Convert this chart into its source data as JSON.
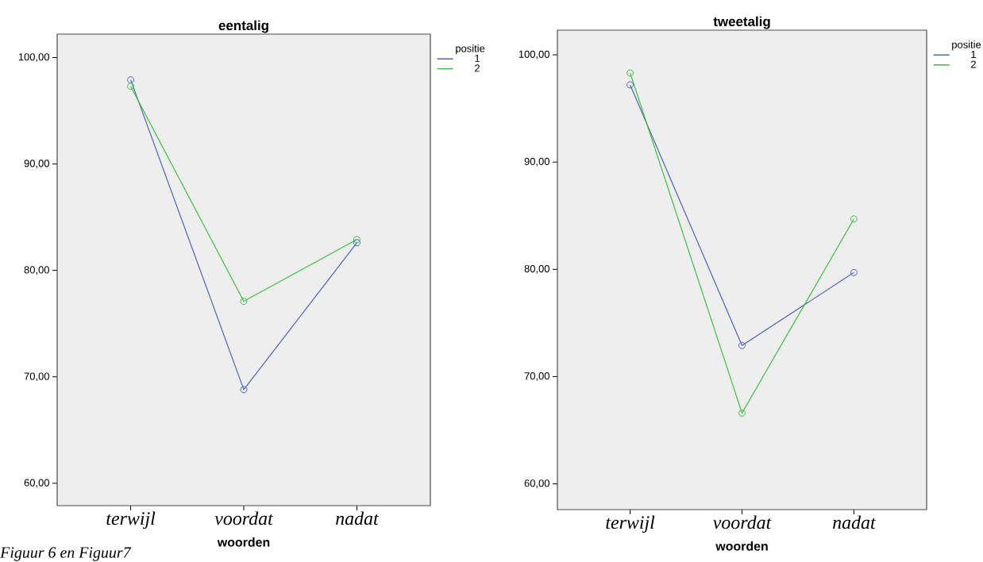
{
  "chart_data": [
    {
      "type": "line",
      "title": "eentalig",
      "xlabel": "woorden",
      "legend_title": "positie",
      "categories": [
        "terwijl",
        "voordat",
        "nadat"
      ],
      "series": [
        {
          "name": "1",
          "color": "#4f63b8",
          "values": [
            97.9,
            68.8,
            82.6
          ]
        },
        {
          "name": "2",
          "color": "#3fbf3f",
          "values": [
            97.3,
            77.1,
            82.9
          ]
        }
      ],
      "ylim": [
        57.9,
        102.2
      ],
      "yticks": [
        {
          "value": 60,
          "label": "60,00"
        },
        {
          "value": 70,
          "label": "70,00"
        },
        {
          "value": 80,
          "label": "80,00"
        },
        {
          "value": 90,
          "label": "90,00"
        },
        {
          "value": 100,
          "label": "100,00"
        }
      ],
      "marker": "circle",
      "line_style": "solid",
      "legend": "right",
      "grid": false,
      "annotations": [
        "Figuur 6 en Figuur7"
      ]
    },
    {
      "type": "line",
      "title": "tweetalig",
      "xlabel": "woorden",
      "legend_title": "positie",
      "categories": [
        "terwijl",
        "voordat",
        "nadat"
      ],
      "series": [
        {
          "name": "1",
          "color": "#4f63b8",
          "values": [
            97.2,
            72.9,
            79.7
          ]
        },
        {
          "name": "2",
          "color": "#3fbf3f",
          "values": [
            98.3,
            66.6,
            84.7
          ]
        }
      ],
      "ylim": [
        57.6,
        102.3
      ],
      "yticks": [
        {
          "value": 60,
          "label": "60,00"
        },
        {
          "value": 70,
          "label": "70,00"
        },
        {
          "value": 80,
          "label": "80,00"
        },
        {
          "value": 90,
          "label": "90,00"
        },
        {
          "value": 100,
          "label": "100,00"
        }
      ],
      "marker": "circle",
      "line_style": "solid",
      "legend": "right",
      "grid": false
    }
  ]
}
